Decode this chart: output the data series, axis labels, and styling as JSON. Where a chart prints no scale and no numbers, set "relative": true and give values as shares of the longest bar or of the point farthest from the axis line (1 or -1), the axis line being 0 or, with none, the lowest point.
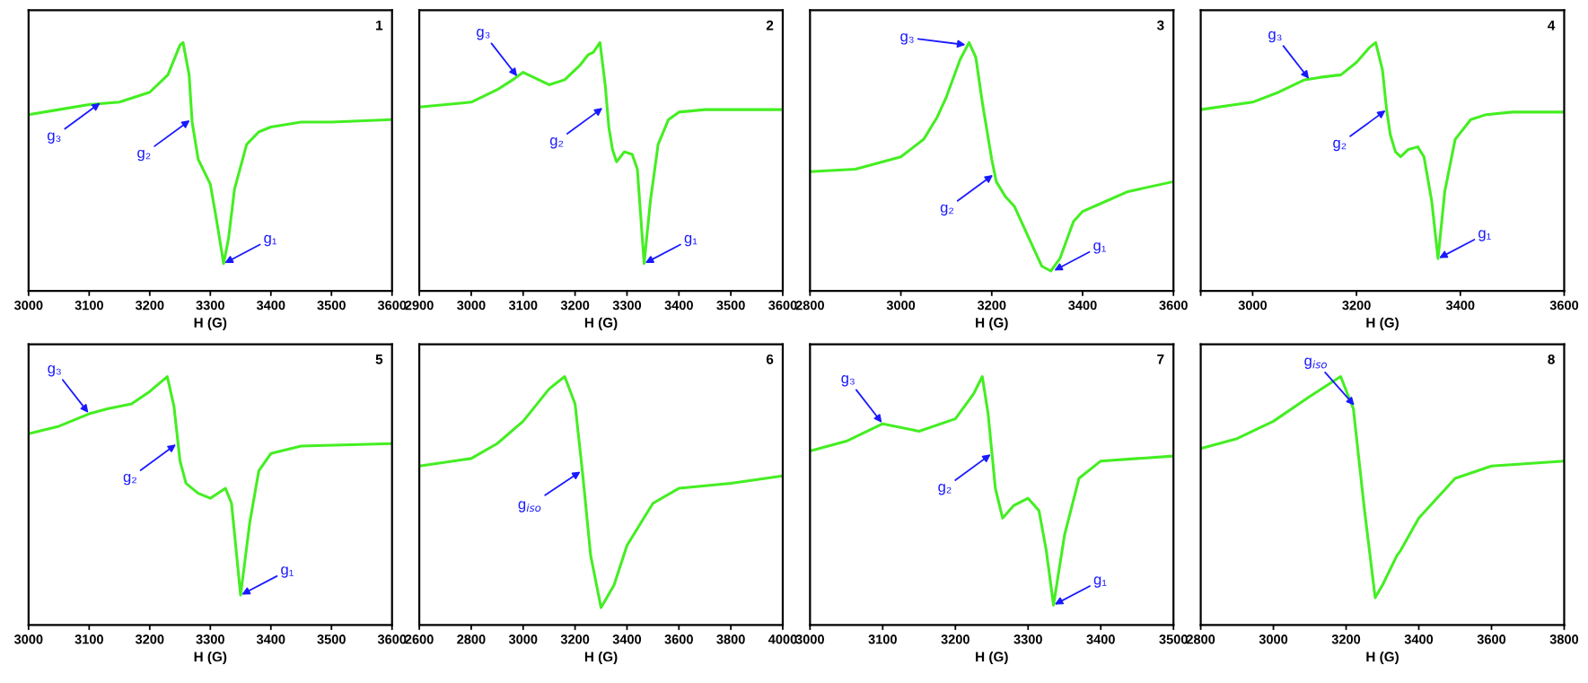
{
  "chart_data": [
    {
      "type": "line",
      "title": "1",
      "xlabel": "H (G)",
      "relative": true,
      "tick_labels": "x",
      "xlim": [
        3000,
        3600
      ],
      "xticks": [
        3000,
        3100,
        3200,
        3300,
        3400,
        3500,
        3600
      ],
      "series": [
        {
          "color": "#44ee22",
          "x": [
            3000,
            3050,
            3100,
            3150,
            3200,
            3230,
            3250,
            3255,
            3265,
            3270,
            3280,
            3290,
            3300,
            3310,
            3322,
            3330,
            3340,
            3360,
            3380,
            3400,
            3450,
            3500,
            3600
          ],
          "values": [
            0.71,
            0.73,
            0.75,
            0.76,
            0.8,
            0.87,
            0.99,
            1.0,
            0.87,
            0.68,
            0.53,
            0.48,
            0.43,
            0.29,
            0.11,
            0.21,
            0.41,
            0.59,
            0.64,
            0.66,
            0.68,
            0.68,
            0.69
          ]
        }
      ],
      "annotations": [
        {
          "text": "g₃",
          "x": 3120,
          "y": 0.76
        },
        {
          "text": "g₂",
          "x": 3268,
          "y": 0.69
        },
        {
          "text": "g₁",
          "x": 3322,
          "y": 0.11
        }
      ]
    },
    {
      "type": "line",
      "title": "2",
      "xlabel": "H (G)",
      "relative": true,
      "tick_labels": "x",
      "xlim": [
        2900,
        3600
      ],
      "xticks": [
        2900,
        3000,
        3100,
        3200,
        3300,
        3400,
        3500,
        3600
      ],
      "series": [
        {
          "color": "#44ee22",
          "x": [
            2900,
            3000,
            3050,
            3080,
            3100,
            3120,
            3150,
            3180,
            3210,
            3225,
            3235,
            3248,
            3258,
            3265,
            3272,
            3280,
            3295,
            3310,
            3320,
            3333,
            3345,
            3360,
            3380,
            3400,
            3450,
            3600
          ],
          "values": [
            0.74,
            0.76,
            0.81,
            0.85,
            0.88,
            0.86,
            0.83,
            0.85,
            0.91,
            0.95,
            0.96,
            1.0,
            0.83,
            0.66,
            0.57,
            0.52,
            0.56,
            0.55,
            0.49,
            0.11,
            0.36,
            0.59,
            0.69,
            0.72,
            0.73,
            0.73
          ]
        }
      ],
      "annotations": [
        {
          "text": "g₃",
          "x": 3090,
          "y": 0.86
        },
        {
          "text": "g₂",
          "x": 3255,
          "y": 0.74
        },
        {
          "text": "g₁",
          "x": 3333,
          "y": 0.11
        }
      ]
    },
    {
      "type": "line",
      "title": "3",
      "xlabel": "H (G)",
      "relative": true,
      "tick_labels": "x",
      "xlim": [
        2800,
        3600
      ],
      "xticks": [
        2800,
        3000,
        3200,
        3400,
        3600
      ],
      "series": [
        {
          "color": "#44ee22",
          "x": [
            2800,
            2900,
            3000,
            3050,
            3080,
            3100,
            3130,
            3150,
            3165,
            3180,
            3200,
            3210,
            3230,
            3250,
            3280,
            3310,
            3330,
            3350,
            3380,
            3400,
            3450,
            3500,
            3600
          ],
          "values": [
            0.48,
            0.49,
            0.54,
            0.61,
            0.7,
            0.78,
            0.93,
            1.0,
            0.94,
            0.75,
            0.53,
            0.44,
            0.38,
            0.34,
            0.22,
            0.1,
            0.08,
            0.13,
            0.28,
            0.32,
            0.36,
            0.4,
            0.44
          ]
        }
      ],
      "annotations": [
        {
          "text": "g₃",
          "x": 3145,
          "y": 0.99
        },
        {
          "text": "g₂",
          "x": 3205,
          "y": 0.47
        },
        {
          "text": "g₁",
          "x": 3335,
          "y": 0.08
        }
      ]
    },
    {
      "type": "line",
      "title": "4",
      "xlabel": "H (G)",
      "relative": true,
      "tick_labels": "x",
      "xlim": [
        2900,
        3600
      ],
      "xticks": [
        {
          "value": 2900,
          "label": null
        },
        3000,
        3200,
        3400,
        3600
      ],
      "series": [
        {
          "color": "#44ee22",
          "x": [
            2900,
            3000,
            3050,
            3100,
            3130,
            3170,
            3200,
            3225,
            3237,
            3250,
            3258,
            3265,
            3275,
            3285,
            3300,
            3318,
            3330,
            3345,
            3357,
            3370,
            3390,
            3420,
            3450,
            3500,
            3600
          ],
          "values": [
            0.73,
            0.76,
            0.8,
            0.85,
            0.86,
            0.87,
            0.92,
            0.98,
            1.0,
            0.89,
            0.73,
            0.63,
            0.56,
            0.54,
            0.57,
            0.58,
            0.54,
            0.36,
            0.13,
            0.4,
            0.61,
            0.69,
            0.71,
            0.72,
            0.72
          ]
        }
      ],
      "annotations": [
        {
          "text": "g₃",
          "x": 3110,
          "y": 0.85
        },
        {
          "text": "g₂",
          "x": 3258,
          "y": 0.73
        },
        {
          "text": "g₁",
          "x": 3357,
          "y": 0.13
        }
      ]
    },
    {
      "type": "line",
      "title": "5",
      "xlabel": "H (G)",
      "relative": true,
      "tick_labels": "x",
      "xlim": [
        3000,
        3600
      ],
      "xticks": [
        3000,
        3100,
        3200,
        3300,
        3400,
        3500,
        3600
      ],
      "series": [
        {
          "color": "#44ee22",
          "x": [
            3000,
            3050,
            3100,
            3130,
            3170,
            3200,
            3229,
            3240,
            3250,
            3260,
            3280,
            3300,
            3325,
            3335,
            3350,
            3365,
            3380,
            3400,
            3450,
            3600
          ],
          "values": [
            0.77,
            0.8,
            0.85,
            0.87,
            0.89,
            0.94,
            1.0,
            0.88,
            0.66,
            0.57,
            0.53,
            0.51,
            0.55,
            0.49,
            0.12,
            0.41,
            0.62,
            0.69,
            0.72,
            0.73
          ]
        }
      ],
      "annotations": [
        {
          "text": "g₃",
          "x": 3100,
          "y": 0.85
        },
        {
          "text": "g₂",
          "x": 3245,
          "y": 0.73
        },
        {
          "text": "g₁",
          "x": 3350,
          "y": 0.12
        }
      ]
    },
    {
      "type": "line",
      "title": "6",
      "xlabel": "H (G)",
      "relative": true,
      "tick_labels": "x",
      "xlim": [
        2600,
        4000
      ],
      "xticks": [
        2600,
        2800,
        3000,
        3200,
        3400,
        3600,
        3800,
        4000
      ],
      "series": [
        {
          "color": "#44ee22",
          "x": [
            2600,
            2800,
            2900,
            3000,
            3100,
            3160,
            3200,
            3230,
            3260,
            3300,
            3350,
            3400,
            3500,
            3600,
            3800,
            4000
          ],
          "values": [
            0.64,
            0.67,
            0.73,
            0.82,
            0.95,
            1.0,
            0.89,
            0.6,
            0.28,
            0.07,
            0.16,
            0.32,
            0.49,
            0.55,
            0.57,
            0.6
          ]
        }
      ],
      "annotations": [
        {
          "text": "g$_{iso}$",
          "x": 3225,
          "y": 0.62
        }
      ]
    },
    {
      "type": "line",
      "title": "7",
      "xlabel": "H (G)",
      "relative": true,
      "tick_labels": "x",
      "xlim": [
        3000,
        3500
      ],
      "xticks": [
        3000,
        3100,
        3200,
        3300,
        3400,
        3500
      ],
      "series": [
        {
          "color": "#44ee22",
          "x": [
            3000,
            3050,
            3100,
            3150,
            3200,
            3225,
            3237,
            3245,
            3255,
            3265,
            3280,
            3300,
            3315,
            3325,
            3335,
            3350,
            3370,
            3400,
            3450,
            3500
          ],
          "values": [
            0.7,
            0.74,
            0.81,
            0.78,
            0.83,
            0.93,
            1.0,
            0.85,
            0.55,
            0.43,
            0.48,
            0.51,
            0.46,
            0.3,
            0.08,
            0.36,
            0.59,
            0.66,
            0.67,
            0.68
          ]
        }
      ],
      "annotations": [
        {
          "text": "g₃",
          "x": 3100,
          "y": 0.81
        },
        {
          "text": "g₂",
          "x": 3250,
          "y": 0.69
        },
        {
          "text": "g₁",
          "x": 3335,
          "y": 0.08
        }
      ]
    },
    {
      "type": "line",
      "title": "8",
      "xlabel": "H (G)",
      "relative": true,
      "tick_labels": "x",
      "xlim": [
        2800,
        3800
      ],
      "xticks": [
        2800,
        3000,
        3200,
        3400,
        3600,
        3800
      ],
      "series": [
        {
          "color": "#44ee22",
          "x": [
            2800,
            2900,
            3000,
            3100,
            3185,
            3220,
            3250,
            3280,
            3300,
            3340,
            3350,
            3400,
            3500,
            3600,
            3800
          ],
          "values": [
            0.71,
            0.75,
            0.82,
            0.92,
            1.0,
            0.87,
            0.47,
            0.11,
            0.16,
            0.28,
            0.3,
            0.43,
            0.59,
            0.64,
            0.66
          ]
        }
      ],
      "annotations": [
        {
          "text": "g$_{iso}$",
          "x": 3225,
          "y": 0.88
        }
      ]
    }
  ]
}
